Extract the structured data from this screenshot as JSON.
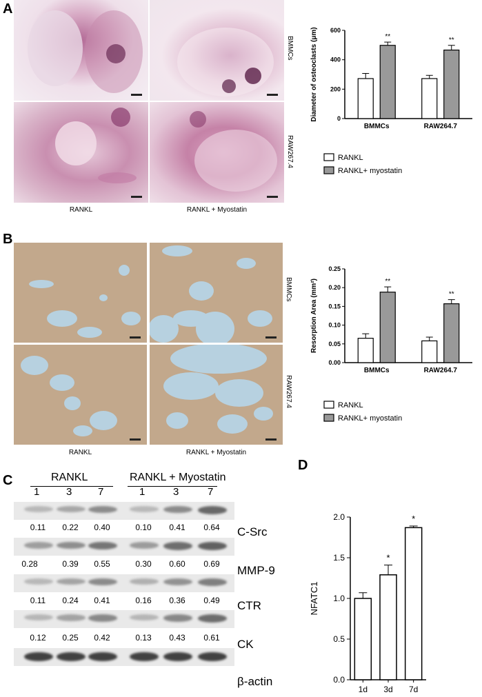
{
  "panel_A": {
    "letter": "A",
    "row_labels": [
      "BMMCs",
      "RAW267.4"
    ],
    "col_labels": [
      "RANKL",
      "RANKL + Myostatin"
    ]
  },
  "panel_B": {
    "letter": "B",
    "row_labels": [
      "BMMCs",
      "RAW267.4"
    ],
    "col_labels": [
      "RANKL",
      "RANKL + Myostatin"
    ]
  },
  "panel_C": {
    "letter": "C",
    "group_labels": [
      "RANKL",
      "RANKL + Myostatin"
    ],
    "time_labels": [
      "1",
      "3",
      "7",
      "1",
      "3",
      "7"
    ],
    "proteins": [
      "C-Src",
      "MMP-9",
      "CTR",
      "CK",
      "β-actin"
    ],
    "band_values": [
      [
        "0.11",
        "0.22",
        "0.40",
        "0.10",
        "0.41",
        "0.64"
      ],
      [
        "0.28",
        "0.39",
        "0.55",
        "0.30",
        "0.60",
        "0.69"
      ],
      [
        "0.11",
        "0.24",
        "0.41",
        "0.16",
        "0.36",
        "0.49"
      ],
      [
        "0.12",
        "0.25",
        "0.42",
        "0.13",
        "0.43",
        "0.61"
      ]
    ]
  },
  "panel_D": {
    "letter": "D"
  },
  "chart_data": [
    {
      "type": "bar",
      "categories": [
        "BMMCs",
        "RAW264.7"
      ],
      "series": [
        {
          "name": "RANKL",
          "values": [
            272,
            272
          ],
          "errors": [
            35,
            22
          ],
          "color": "#ffffff"
        },
        {
          "name": "RANKL+ myostatin",
          "values": [
            498,
            466
          ],
          "errors": [
            22,
            32
          ],
          "color": "#999999",
          "annotations": [
            "**",
            "**"
          ]
        }
      ],
      "ylabel": "Diameter of osteoclasts (μm)",
      "ylim": [
        0,
        600
      ],
      "yticks": [
        "0",
        "200",
        "400",
        "600"
      ],
      "legend": "bottom"
    },
    {
      "type": "bar",
      "categories": [
        "BMMCs",
        "RAW264.7"
      ],
      "series": [
        {
          "name": "RANKL",
          "values": [
            0.065,
            0.058
          ],
          "errors": [
            0.012,
            0.01
          ],
          "color": "#ffffff"
        },
        {
          "name": "RANKL+ myostatin",
          "values": [
            0.188,
            0.157
          ],
          "errors": [
            0.014,
            0.011
          ],
          "color": "#999999",
          "annotations": [
            "**",
            "**"
          ]
        }
      ],
      "ylabel": "Resorption Area (mm²)",
      "ylim": [
        0,
        0.25
      ],
      "yticks": [
        "0.00",
        "0.05",
        "0.10",
        "0.15",
        "0.20",
        "0.25"
      ],
      "legend": "bottom"
    },
    {
      "type": "bar",
      "categories": [
        "1d",
        "3d",
        "7d"
      ],
      "values": [
        1.0,
        1.29,
        1.87
      ],
      "errors": [
        0.07,
        0.12,
        0.02
      ],
      "annotations": [
        "",
        "*",
        "*"
      ],
      "ylabel": "NFATC1",
      "ylim": [
        0,
        2.0
      ],
      "yticks": [
        "0.0",
        "0.5",
        "1.0",
        "1.5",
        "2.0"
      ]
    }
  ]
}
